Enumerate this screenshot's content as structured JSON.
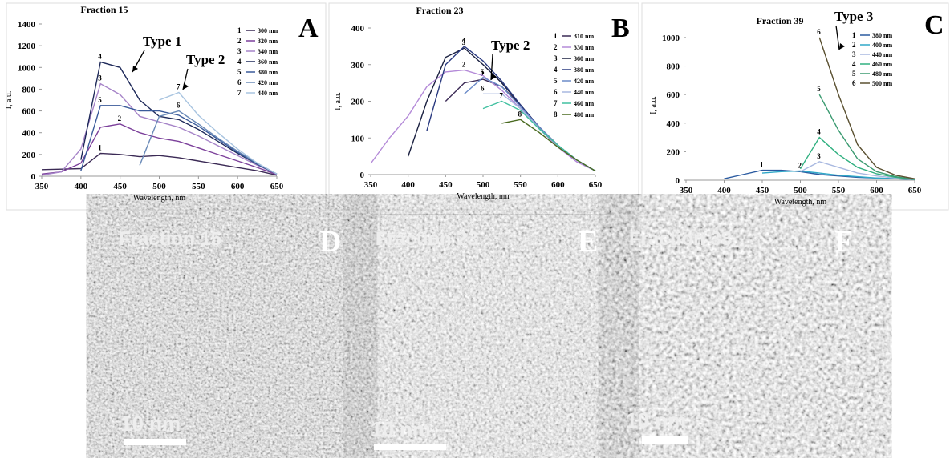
{
  "chart_data": [
    {
      "type": "line",
      "title": "Fraction 15",
      "panel": "A",
      "xlabel": "Wavelength, nm",
      "ylabel": "I, a.u.",
      "annotations": [
        "Type 1",
        "Type 2"
      ],
      "x": [
        350,
        375,
        400,
        425,
        450,
        475,
        500,
        525,
        550,
        575,
        600,
        625,
        650
      ],
      "xlim": [
        350,
        650
      ],
      "xticks": [
        350,
        400,
        450,
        500,
        550,
        600,
        650
      ],
      "ylim": [
        0,
        1400
      ],
      "yticks": [
        0,
        200,
        400,
        600,
        800,
        1000,
        1200,
        1400
      ],
      "series": [
        {
          "label": "1",
          "name": "300 nm",
          "color": "#3b2a55",
          "values": [
            60,
            65,
            70,
            210,
            200,
            180,
            190,
            170,
            140,
            110,
            80,
            50,
            10
          ]
        },
        {
          "label": "2",
          "name": "320 nm",
          "color": "#7b3f9a",
          "values": [
            20,
            40,
            120,
            450,
            480,
            400,
            350,
            320,
            260,
            200,
            140,
            80,
            15
          ]
        },
        {
          "label": "3",
          "name": "340 nm",
          "color": "#a684c8",
          "values": [
            10,
            40,
            250,
            850,
            750,
            550,
            500,
            450,
            370,
            280,
            190,
            100,
            20
          ]
        },
        {
          "label": "4",
          "name": "360 nm",
          "color": "#1f2a5a",
          "values": [
            null,
            null,
            150,
            1050,
            1000,
            700,
            550,
            520,
            430,
            320,
            210,
            110,
            20
          ]
        },
        {
          "label": "5",
          "name": "380 nm",
          "color": "#3a5a9a",
          "values": [
            null,
            null,
            50,
            650,
            650,
            600,
            600,
            560,
            460,
            340,
            220,
            110,
            20
          ]
        },
        {
          "label": "6",
          "name": "420 nm",
          "color": "#6a8ab8",
          "values": [
            null,
            null,
            null,
            null,
            null,
            100,
            550,
            600,
            480,
            350,
            230,
            120,
            20
          ]
        },
        {
          "label": "7",
          "name": "440 nm",
          "color": "#a8c4e0",
          "values": [
            null,
            null,
            null,
            null,
            null,
            null,
            700,
            770,
            560,
            400,
            250,
            120,
            20
          ]
        }
      ]
    },
    {
      "type": "line",
      "title": "Fraction  23",
      "panel": "B",
      "xlabel": "Wavelength, nm",
      "ylabel": "I, a.u.",
      "annotations": [
        "Type 2"
      ],
      "x": [
        350,
        375,
        400,
        425,
        450,
        475,
        500,
        525,
        550,
        575,
        600,
        625,
        650
      ],
      "xlim": [
        350,
        650
      ],
      "xticks": [
        350,
        400,
        450,
        500,
        550,
        600,
        650
      ],
      "ylim": [
        0,
        400
      ],
      "yticks": [
        0,
        100,
        200,
        300,
        400
      ],
      "series": [
        {
          "label": "1",
          "name": "310 nm",
          "color": "#3b2a55",
          "values": [
            null,
            null,
            null,
            null,
            200,
            250,
            260,
            240,
            190,
            130,
            80,
            40,
            10
          ]
        },
        {
          "label": "2",
          "name": "330 nm",
          "color": "#b48ad8",
          "values": [
            30,
            100,
            160,
            240,
            280,
            285,
            270,
            230,
            180,
            125,
            75,
            35,
            10
          ]
        },
        {
          "label": "3",
          "name": "360 nm",
          "color": "#1a2040",
          "values": [
            null,
            null,
            50,
            200,
            320,
            345,
            300,
            250,
            190,
            130,
            80,
            40,
            10
          ]
        },
        {
          "label": "4",
          "name": "380 nm",
          "color": "#2a3a80",
          "values": [
            null,
            null,
            null,
            120,
            300,
            350,
            310,
            255,
            190,
            130,
            80,
            40,
            10
          ]
        },
        {
          "label": "5",
          "name": "420 nm",
          "color": "#6a8ac8",
          "values": [
            null,
            null,
            null,
            null,
            null,
            220,
            265,
            240,
            185,
            130,
            80,
            40,
            10
          ]
        },
        {
          "label": "6",
          "name": "440 nm",
          "color": "#a8b8e0",
          "values": [
            null,
            null,
            null,
            null,
            null,
            null,
            220,
            220,
            180,
            125,
            80,
            40,
            10
          ]
        },
        {
          "label": "7",
          "name": "460 nm",
          "color": "#40c0a0",
          "values": [
            null,
            null,
            null,
            null,
            null,
            null,
            180,
            200,
            175,
            125,
            80,
            40,
            10
          ]
        },
        {
          "label": "8",
          "name": "480 nm",
          "color": "#4a6a20",
          "values": [
            null,
            null,
            null,
            null,
            null,
            null,
            null,
            140,
            150,
            115,
            75,
            40,
            10
          ]
        }
      ]
    },
    {
      "type": "line",
      "title": "Fraction 39",
      "panel": "C",
      "xlabel": "Wavelength, nm",
      "ylabel": "I, a.u.",
      "annotations": [
        "Type 3"
      ],
      "x": [
        350,
        375,
        400,
        425,
        450,
        475,
        500,
        525,
        550,
        575,
        600,
        625,
        650
      ],
      "xlim": [
        350,
        650
      ],
      "xticks": [
        350,
        400,
        450,
        500,
        550,
        600,
        650
      ],
      "ylim": [
        0,
        1050
      ],
      "yticks": [
        0,
        200,
        400,
        600,
        800,
        1000
      ],
      "series": [
        {
          "label": "1",
          "name": "380 nm",
          "color": "#2a5aa0",
          "values": [
            null,
            null,
            10,
            40,
            70,
            70,
            60,
            40,
            30,
            20,
            15,
            10,
            5
          ]
        },
        {
          "label": "2",
          "name": "400 nm",
          "color": "#30a8c8",
          "values": [
            null,
            null,
            null,
            null,
            50,
            60,
            65,
            50,
            35,
            25,
            15,
            10,
            5
          ]
        },
        {
          "label": "3",
          "name": "440 nm",
          "color": "#a8b8e0",
          "values": [
            null,
            null,
            null,
            null,
            null,
            null,
            60,
            130,
            90,
            50,
            30,
            15,
            5
          ]
        },
        {
          "label": "4",
          "name": "460 nm",
          "color": "#30b080",
          "values": [
            null,
            null,
            null,
            null,
            null,
            null,
            80,
            300,
            180,
            90,
            45,
            20,
            5
          ]
        },
        {
          "label": "5",
          "name": "480 nm",
          "color": "#3a9a70",
          "values": [
            null,
            null,
            null,
            null,
            null,
            null,
            null,
            600,
            350,
            150,
            60,
            25,
            5
          ]
        },
        {
          "label": "6",
          "name": "500 nm",
          "color": "#5a5030",
          "values": [
            null,
            null,
            null,
            null,
            null,
            null,
            null,
            1000,
            600,
            250,
            90,
            35,
            10
          ]
        }
      ]
    }
  ],
  "images": [
    {
      "title": "Fraction 15",
      "panel": "D",
      "scale": "10 nm"
    },
    {
      "title": "Fraction 23",
      "panel": "E",
      "scale": "10 nm"
    },
    {
      "title": "Fraction 38",
      "panel": "F",
      "scale": "10 nm"
    }
  ]
}
